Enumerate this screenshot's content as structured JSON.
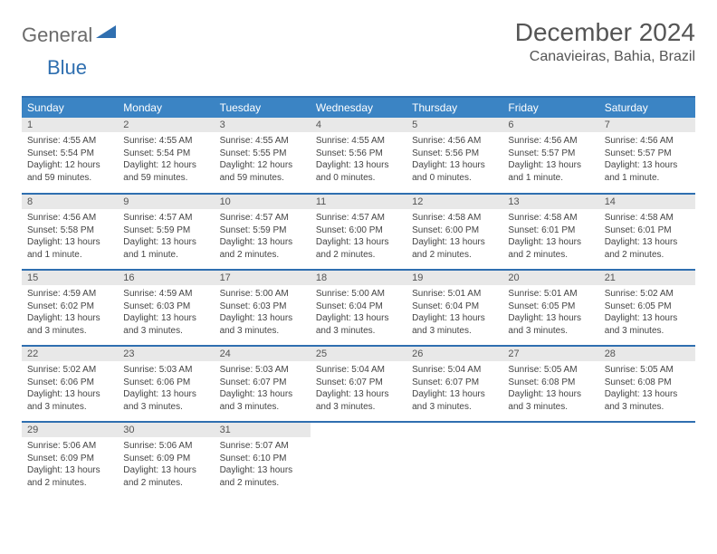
{
  "logo": {
    "general": "General",
    "blue": "Blue"
  },
  "title": "December 2024",
  "location": "Canavieiras, Bahia, Brazil",
  "colors": {
    "header_bg": "#3b84c4",
    "header_border": "#2f6fb0",
    "row_border": "#2f6fb0",
    "daynum_bg": "#e8e8e8",
    "text": "#444444",
    "title_text": "#555555"
  },
  "weekdays": [
    "Sunday",
    "Monday",
    "Tuesday",
    "Wednesday",
    "Thursday",
    "Friday",
    "Saturday"
  ],
  "weeks": [
    [
      {
        "n": "1",
        "sr": "4:55 AM",
        "ss": "5:54 PM",
        "dl": "12 hours and 59 minutes."
      },
      {
        "n": "2",
        "sr": "4:55 AM",
        "ss": "5:54 PM",
        "dl": "12 hours and 59 minutes."
      },
      {
        "n": "3",
        "sr": "4:55 AM",
        "ss": "5:55 PM",
        "dl": "12 hours and 59 minutes."
      },
      {
        "n": "4",
        "sr": "4:55 AM",
        "ss": "5:56 PM",
        "dl": "13 hours and 0 minutes."
      },
      {
        "n": "5",
        "sr": "4:56 AM",
        "ss": "5:56 PM",
        "dl": "13 hours and 0 minutes."
      },
      {
        "n": "6",
        "sr": "4:56 AM",
        "ss": "5:57 PM",
        "dl": "13 hours and 1 minute."
      },
      {
        "n": "7",
        "sr": "4:56 AM",
        "ss": "5:57 PM",
        "dl": "13 hours and 1 minute."
      }
    ],
    [
      {
        "n": "8",
        "sr": "4:56 AM",
        "ss": "5:58 PM",
        "dl": "13 hours and 1 minute."
      },
      {
        "n": "9",
        "sr": "4:57 AM",
        "ss": "5:59 PM",
        "dl": "13 hours and 1 minute."
      },
      {
        "n": "10",
        "sr": "4:57 AM",
        "ss": "5:59 PM",
        "dl": "13 hours and 2 minutes."
      },
      {
        "n": "11",
        "sr": "4:57 AM",
        "ss": "6:00 PM",
        "dl": "13 hours and 2 minutes."
      },
      {
        "n": "12",
        "sr": "4:58 AM",
        "ss": "6:00 PM",
        "dl": "13 hours and 2 minutes."
      },
      {
        "n": "13",
        "sr": "4:58 AM",
        "ss": "6:01 PM",
        "dl": "13 hours and 2 minutes."
      },
      {
        "n": "14",
        "sr": "4:58 AM",
        "ss": "6:01 PM",
        "dl": "13 hours and 2 minutes."
      }
    ],
    [
      {
        "n": "15",
        "sr": "4:59 AM",
        "ss": "6:02 PM",
        "dl": "13 hours and 3 minutes."
      },
      {
        "n": "16",
        "sr": "4:59 AM",
        "ss": "6:03 PM",
        "dl": "13 hours and 3 minutes."
      },
      {
        "n": "17",
        "sr": "5:00 AM",
        "ss": "6:03 PM",
        "dl": "13 hours and 3 minutes."
      },
      {
        "n": "18",
        "sr": "5:00 AM",
        "ss": "6:04 PM",
        "dl": "13 hours and 3 minutes."
      },
      {
        "n": "19",
        "sr": "5:01 AM",
        "ss": "6:04 PM",
        "dl": "13 hours and 3 minutes."
      },
      {
        "n": "20",
        "sr": "5:01 AM",
        "ss": "6:05 PM",
        "dl": "13 hours and 3 minutes."
      },
      {
        "n": "21",
        "sr": "5:02 AM",
        "ss": "6:05 PM",
        "dl": "13 hours and 3 minutes."
      }
    ],
    [
      {
        "n": "22",
        "sr": "5:02 AM",
        "ss": "6:06 PM",
        "dl": "13 hours and 3 minutes."
      },
      {
        "n": "23",
        "sr": "5:03 AM",
        "ss": "6:06 PM",
        "dl": "13 hours and 3 minutes."
      },
      {
        "n": "24",
        "sr": "5:03 AM",
        "ss": "6:07 PM",
        "dl": "13 hours and 3 minutes."
      },
      {
        "n": "25",
        "sr": "5:04 AM",
        "ss": "6:07 PM",
        "dl": "13 hours and 3 minutes."
      },
      {
        "n": "26",
        "sr": "5:04 AM",
        "ss": "6:07 PM",
        "dl": "13 hours and 3 minutes."
      },
      {
        "n": "27",
        "sr": "5:05 AM",
        "ss": "6:08 PM",
        "dl": "13 hours and 3 minutes."
      },
      {
        "n": "28",
        "sr": "5:05 AM",
        "ss": "6:08 PM",
        "dl": "13 hours and 3 minutes."
      }
    ],
    [
      {
        "n": "29",
        "sr": "5:06 AM",
        "ss": "6:09 PM",
        "dl": "13 hours and 2 minutes."
      },
      {
        "n": "30",
        "sr": "5:06 AM",
        "ss": "6:09 PM",
        "dl": "13 hours and 2 minutes."
      },
      {
        "n": "31",
        "sr": "5:07 AM",
        "ss": "6:10 PM",
        "dl": "13 hours and 2 minutes."
      },
      null,
      null,
      null,
      null
    ]
  ],
  "labels": {
    "sunrise": "Sunrise: ",
    "sunset": "Sunset: ",
    "daylight": "Daylight: "
  }
}
